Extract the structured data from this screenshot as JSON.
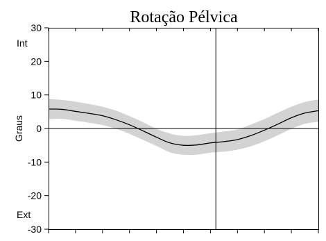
{
  "chart_data": {
    "type": "line",
    "title": "Rotação Pélvica",
    "xlabel": "",
    "ylabel": "Graus",
    "ylim": [
      -30,
      30
    ],
    "yticks": [
      30,
      20,
      10,
      0,
      -10,
      -20,
      -30
    ],
    "ytick_labels": [
      "30",
      "20",
      "10",
      "0",
      "-10",
      "-20",
      "-30"
    ],
    "xlim": [
      0,
      100
    ],
    "xticks": [
      0,
      10,
      20,
      30,
      40,
      50,
      60,
      70,
      80,
      90,
      100
    ],
    "annotations": {
      "top": "Int",
      "bottom": "Ext"
    },
    "vertical_marker_x": 62,
    "zero_line": true,
    "grid": false,
    "band_color": "#d3d3d3",
    "line_color": "#000000",
    "series": [
      {
        "x": [
          0,
          5,
          10,
          15,
          20,
          25,
          30,
          35,
          40,
          45,
          50,
          55,
          60,
          65,
          70,
          75,
          80,
          85,
          90,
          95,
          100
        ],
        "mean": [
          5.8,
          5.7,
          5.1,
          4.5,
          3.8,
          2.6,
          1.1,
          -0.7,
          -2.6,
          -4.3,
          -5.0,
          -4.9,
          -4.3,
          -3.9,
          -3.3,
          -2.1,
          -0.5,
          1.3,
          3.2,
          4.6,
          5.3
        ],
        "upper": [
          8.8,
          8.5,
          8.0,
          7.3,
          6.5,
          5.3,
          3.7,
          1.9,
          -0.1,
          -1.5,
          -2.2,
          -2.0,
          -1.4,
          -0.9,
          -0.3,
          1.2,
          2.8,
          4.7,
          6.5,
          7.9,
          8.6
        ],
        "lower": [
          2.8,
          2.9,
          2.3,
          1.7,
          1.0,
          -0.1,
          -1.6,
          -3.4,
          -5.2,
          -7.1,
          -7.8,
          -7.8,
          -7.2,
          -6.9,
          -6.3,
          -5.3,
          -3.8,
          -2.0,
          -0.1,
          1.4,
          2.0
        ]
      }
    ]
  }
}
